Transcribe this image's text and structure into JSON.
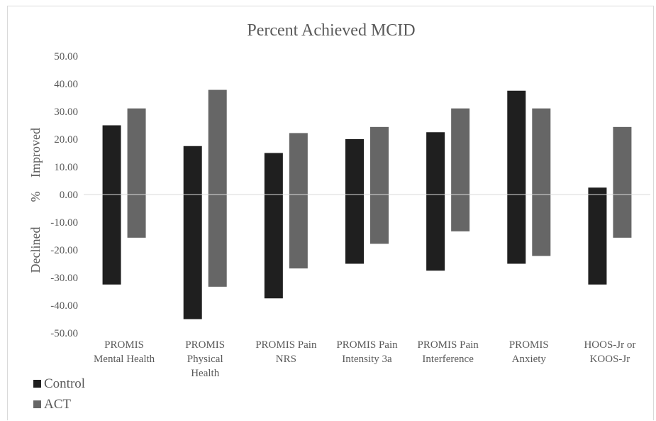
{
  "chart_data": {
    "type": "bar",
    "title": "Percent Achieved MCID",
    "ylabel_improved": "Improved",
    "ylabel_percent": "%",
    "ylabel_declined": "Declined",
    "ylim": [
      -50,
      50
    ],
    "yticks": [
      "50.00",
      "40.00",
      "30.00",
      "20.00",
      "10.00",
      "0.00",
      "-10.00",
      "-20.00",
      "-30.00",
      "-40.00",
      "-50.00"
    ],
    "ytick_values": [
      50,
      40,
      30,
      20,
      10,
      0,
      -10,
      -20,
      -30,
      -40,
      -50
    ],
    "categories": [
      [
        "PROMIS",
        "Mental Health"
      ],
      [
        "PROMIS",
        "Physical",
        "Health"
      ],
      [
        "PROMIS Pain",
        "NRS"
      ],
      [
        "PROMIS Pain",
        "Intensity 3a"
      ],
      [
        "PROMIS Pain",
        "Interference"
      ],
      [
        "PROMIS",
        "Anxiety"
      ],
      [
        "HOOS-Jr or",
        "KOOS-Jr"
      ]
    ],
    "series": [
      {
        "name": "Control",
        "color": "#1f1f1f",
        "improved": [
          25.0,
          17.5,
          15.0,
          20.0,
          22.5,
          37.5,
          2.5
        ],
        "declined": [
          -32.5,
          -45.0,
          -37.5,
          -25.0,
          -27.5,
          -25.0,
          -32.5
        ]
      },
      {
        "name": "ACT",
        "color": "#666666",
        "improved": [
          31.1,
          37.8,
          22.2,
          24.4,
          31.1,
          31.1,
          24.4
        ],
        "declined": [
          -15.6,
          -33.3,
          -26.7,
          -17.8,
          -13.3,
          -22.2,
          -15.6
        ]
      }
    ],
    "grid": false,
    "legend_position": "bottom-left"
  }
}
